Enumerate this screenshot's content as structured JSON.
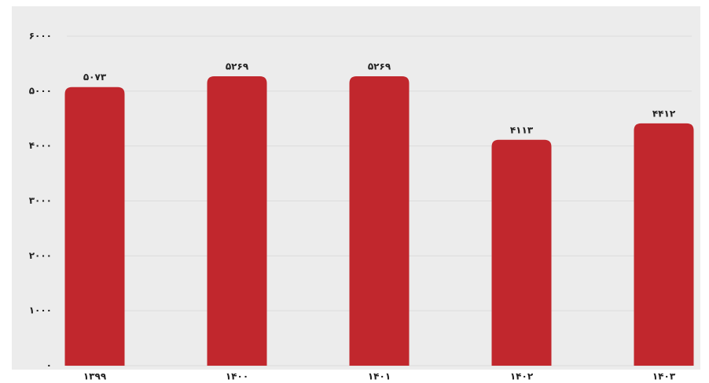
{
  "chart_data": {
    "type": "bar",
    "categories": [
      "۱۳۹۹",
      "۱۴۰۰",
      "۱۴۰۱",
      "۱۴۰۲",
      "۱۴۰۳"
    ],
    "values": [
      5073,
      5269,
      5269,
      4113,
      4412
    ],
    "value_labels": [
      "۵۰۷۳",
      "۵۲۶۹",
      "۵۲۶۹",
      "۴۱۱۳",
      "۴۴۱۲"
    ],
    "color": "#c1272d",
    "ylim": [
      0,
      6000
    ],
    "yticks": [
      {
        "value": 0,
        "label": "۰"
      },
      {
        "value": 1000,
        "label": "۱۰۰۰"
      },
      {
        "value": 2000,
        "label": "۲۰۰۰"
      },
      {
        "value": 3000,
        "label": "۳۰۰۰"
      },
      {
        "value": 4000,
        "label": "۴۰۰۰"
      },
      {
        "value": 5000,
        "label": "۵۰۰۰"
      },
      {
        "value": 6000,
        "label": "۶۰۰۰"
      }
    ],
    "grid": true
  }
}
